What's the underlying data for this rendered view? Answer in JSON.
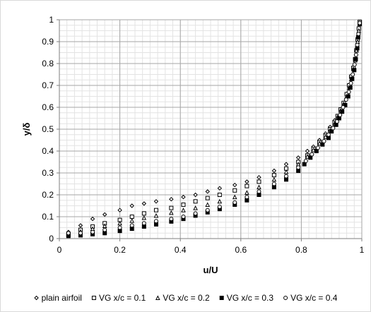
{
  "chart_data": {
    "type": "scatter",
    "title": "",
    "xlabel": "u/U",
    "ylabel": "y/δ",
    "xlim": [
      0,
      1
    ],
    "ylim": [
      0,
      1
    ],
    "x_major_ticks": [
      "0",
      "0.2",
      "0.4",
      "0.6",
      "0.8",
      "1"
    ],
    "y_major_ticks": [
      "0",
      "0.1",
      "0.2",
      "0.3",
      "0.4",
      "0.5",
      "0.6",
      "0.7",
      "0.8",
      "0.9",
      "1"
    ],
    "grid": "major and minor",
    "legend_position": "bottom",
    "series": [
      {
        "name": "plain airfoil",
        "marker": "diamond-open",
        "color": "#000000",
        "points": [
          [
            0.03,
            0.03
          ],
          [
            0.07,
            0.06
          ],
          [
            0.11,
            0.09
          ],
          [
            0.15,
            0.11
          ],
          [
            0.2,
            0.13
          ],
          [
            0.24,
            0.15
          ],
          [
            0.28,
            0.16
          ],
          [
            0.32,
            0.17
          ],
          [
            0.37,
            0.18
          ],
          [
            0.41,
            0.19
          ],
          [
            0.45,
            0.2
          ],
          [
            0.49,
            0.215
          ],
          [
            0.53,
            0.23
          ],
          [
            0.58,
            0.245
          ],
          [
            0.62,
            0.26
          ],
          [
            0.66,
            0.28
          ],
          [
            0.71,
            0.31
          ],
          [
            0.75,
            0.34
          ],
          [
            0.79,
            0.37
          ],
          [
            0.82,
            0.4
          ],
          [
            0.84,
            0.42
          ],
          [
            0.86,
            0.45
          ],
          [
            0.88,
            0.48
          ],
          [
            0.895,
            0.51
          ],
          [
            0.91,
            0.54
          ],
          [
            0.92,
            0.56
          ],
          [
            0.93,
            0.59
          ],
          [
            0.94,
            0.62
          ],
          [
            0.95,
            0.66
          ],
          [
            0.958,
            0.7
          ],
          [
            0.965,
            0.74
          ],
          [
            0.972,
            0.78
          ],
          [
            0.978,
            0.82
          ],
          [
            0.982,
            0.86
          ],
          [
            0.986,
            0.91
          ],
          [
            0.99,
            0.96
          ],
          [
            0.993,
            0.99
          ]
        ]
      },
      {
        "name": "VG x/c = 0.1",
        "marker": "square-open",
        "color": "#000000",
        "points": [
          [
            0.03,
            0.02
          ],
          [
            0.07,
            0.04
          ],
          [
            0.11,
            0.055
          ],
          [
            0.15,
            0.07
          ],
          [
            0.2,
            0.085
          ],
          [
            0.24,
            0.1
          ],
          [
            0.28,
            0.115
          ],
          [
            0.32,
            0.13
          ],
          [
            0.37,
            0.14
          ],
          [
            0.41,
            0.155
          ],
          [
            0.45,
            0.17
          ],
          [
            0.49,
            0.185
          ],
          [
            0.53,
            0.2
          ],
          [
            0.58,
            0.22
          ],
          [
            0.62,
            0.24
          ],
          [
            0.66,
            0.26
          ],
          [
            0.71,
            0.29
          ],
          [
            0.75,
            0.32
          ],
          [
            0.79,
            0.35
          ],
          [
            0.82,
            0.38
          ],
          [
            0.84,
            0.41
          ],
          [
            0.86,
            0.44
          ],
          [
            0.88,
            0.47
          ],
          [
            0.895,
            0.5
          ],
          [
            0.91,
            0.53
          ],
          [
            0.92,
            0.56
          ],
          [
            0.93,
            0.59
          ],
          [
            0.94,
            0.62
          ],
          [
            0.95,
            0.66
          ],
          [
            0.958,
            0.7
          ],
          [
            0.965,
            0.74
          ],
          [
            0.972,
            0.78
          ],
          [
            0.978,
            0.82
          ],
          [
            0.982,
            0.86
          ],
          [
            0.986,
            0.91
          ],
          [
            0.99,
            0.96
          ],
          [
            0.993,
            0.99
          ]
        ]
      },
      {
        "name": "VG x/c = 0.2",
        "marker": "triangle-open",
        "color": "#000000",
        "points": [
          [
            0.03,
            0.018
          ],
          [
            0.07,
            0.032
          ],
          [
            0.11,
            0.045
          ],
          [
            0.15,
            0.058
          ],
          [
            0.2,
            0.07
          ],
          [
            0.24,
            0.082
          ],
          [
            0.28,
            0.095
          ],
          [
            0.32,
            0.105
          ],
          [
            0.37,
            0.118
          ],
          [
            0.41,
            0.13
          ],
          [
            0.45,
            0.14
          ],
          [
            0.49,
            0.155
          ],
          [
            0.53,
            0.17
          ],
          [
            0.58,
            0.19
          ],
          [
            0.62,
            0.21
          ],
          [
            0.66,
            0.235
          ],
          [
            0.71,
            0.27
          ],
          [
            0.75,
            0.305
          ],
          [
            0.79,
            0.34
          ],
          [
            0.82,
            0.375
          ],
          [
            0.84,
            0.405
          ],
          [
            0.86,
            0.435
          ],
          [
            0.88,
            0.465
          ],
          [
            0.895,
            0.495
          ],
          [
            0.91,
            0.525
          ],
          [
            0.92,
            0.555
          ],
          [
            0.93,
            0.585
          ],
          [
            0.94,
            0.615
          ],
          [
            0.95,
            0.65
          ],
          [
            0.958,
            0.69
          ],
          [
            0.965,
            0.73
          ],
          [
            0.972,
            0.775
          ],
          [
            0.978,
            0.815
          ],
          [
            0.982,
            0.86
          ],
          [
            0.986,
            0.9
          ],
          [
            0.99,
            0.95
          ],
          [
            0.993,
            0.985
          ]
        ]
      },
      {
        "name": "VG x/c = 0.3",
        "marker": "square-filled",
        "color": "#000000",
        "points": [
          [
            0.03,
            0.012
          ],
          [
            0.07,
            0.015
          ],
          [
            0.11,
            0.02
          ],
          [
            0.15,
            0.025
          ],
          [
            0.2,
            0.035
          ],
          [
            0.24,
            0.045
          ],
          [
            0.28,
            0.055
          ],
          [
            0.32,
            0.065
          ],
          [
            0.37,
            0.078
          ],
          [
            0.41,
            0.09
          ],
          [
            0.45,
            0.105
          ],
          [
            0.49,
            0.12
          ],
          [
            0.53,
            0.135
          ],
          [
            0.58,
            0.155
          ],
          [
            0.62,
            0.175
          ],
          [
            0.66,
            0.2
          ],
          [
            0.71,
            0.235
          ],
          [
            0.75,
            0.27
          ],
          [
            0.79,
            0.31
          ],
          [
            0.81,
            0.34
          ],
          [
            0.83,
            0.37
          ],
          [
            0.85,
            0.4
          ],
          [
            0.87,
            0.43
          ],
          [
            0.89,
            0.46
          ],
          [
            0.9,
            0.49
          ],
          [
            0.915,
            0.52
          ],
          [
            0.925,
            0.55
          ],
          [
            0.935,
            0.58
          ],
          [
            0.945,
            0.61
          ],
          [
            0.955,
            0.65
          ],
          [
            0.962,
            0.69
          ],
          [
            0.968,
            0.73
          ],
          [
            0.975,
            0.77
          ],
          [
            0.98,
            0.82
          ],
          [
            0.985,
            0.87
          ],
          [
            0.988,
            0.92
          ],
          [
            0.993,
            0.98
          ]
        ]
      },
      {
        "name": "VG x/c = 0.4",
        "marker": "circle-open",
        "color": "#000000",
        "points": [
          [
            0.03,
            0.025
          ],
          [
            0.07,
            0.025
          ],
          [
            0.11,
            0.03
          ],
          [
            0.15,
            0.04
          ],
          [
            0.2,
            0.05
          ],
          [
            0.24,
            0.06
          ],
          [
            0.28,
            0.07
          ],
          [
            0.32,
            0.08
          ],
          [
            0.37,
            0.09
          ],
          [
            0.41,
            0.1
          ],
          [
            0.45,
            0.115
          ],
          [
            0.49,
            0.13
          ],
          [
            0.53,
            0.145
          ],
          [
            0.58,
            0.165
          ],
          [
            0.62,
            0.19
          ],
          [
            0.66,
            0.215
          ],
          [
            0.71,
            0.25
          ],
          [
            0.75,
            0.285
          ],
          [
            0.79,
            0.325
          ],
          [
            0.815,
            0.355
          ],
          [
            0.835,
            0.385
          ],
          [
            0.855,
            0.415
          ],
          [
            0.875,
            0.445
          ],
          [
            0.89,
            0.475
          ],
          [
            0.905,
            0.505
          ],
          [
            0.918,
            0.535
          ],
          [
            0.928,
            0.565
          ],
          [
            0.938,
            0.6
          ],
          [
            0.948,
            0.635
          ],
          [
            0.957,
            0.67
          ],
          [
            0.964,
            0.71
          ],
          [
            0.97,
            0.75
          ],
          [
            0.976,
            0.795
          ],
          [
            0.981,
            0.84
          ],
          [
            0.985,
            0.885
          ],
          [
            0.989,
            0.935
          ],
          [
            0.993,
            0.985
          ]
        ]
      }
    ]
  }
}
